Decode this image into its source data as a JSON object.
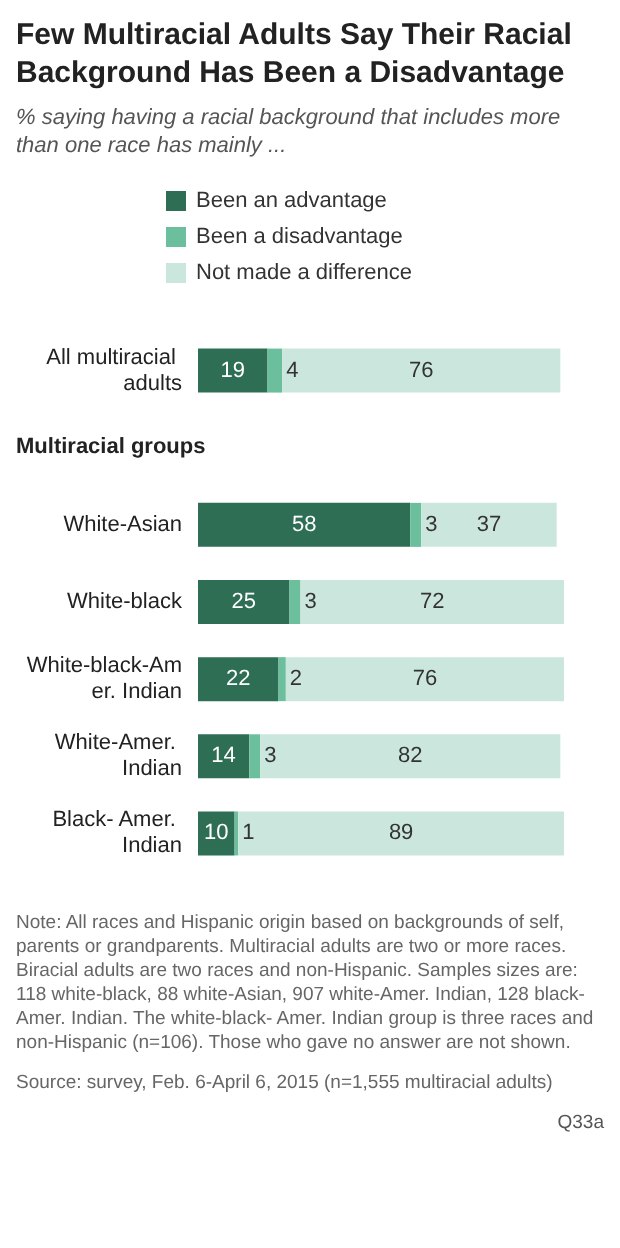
{
  "chart_data": {
    "type": "bar",
    "orientation": "horizontal",
    "stacked": true,
    "data_labels": true,
    "legend": "top left",
    "tick_labels": "y",
    "title": "Few Multiracial Adults Say Their Racial Background Has Been a Disadvantage",
    "subtitle": "% saying having a racial background that includes more than one race has mainly ...",
    "categories": [
      "All multiracial adults",
      null,
      "White-Asian",
      "White-black",
      "White-black-Amer. Indian",
      "White-Amer. Indian",
      "Black- Amer. Indian"
    ],
    "series": [
      {
        "name": "Been an advantage",
        "color": "#2d6e55",
        "values": [
          19,
          null,
          58,
          25,
          22,
          14,
          10
        ]
      },
      {
        "name": "Been a disadvantage",
        "color": "#6cbf9c",
        "values": [
          4,
          null,
          3,
          3,
          2,
          3,
          1
        ]
      },
      {
        "name": "Not made a difference",
        "color": "#cbe7dd",
        "values": [
          76,
          null,
          37,
          72,
          76,
          82,
          89
        ]
      }
    ],
    "annotations": [
      "Multiracial groups",
      "Note: All races and Hispanic origin based on backgrounds of self, parents or grandparents. Multiracial adults are two or more races. Biracial adults are two races and non-Hispanic. Samples sizes are: 118 white-black, 88 white-Asian, 907 white-Amer. Indian, 128 black-Amer. Indian. The white-black- Amer. Indian group is three races and non-Hispanic (n=106). Those who gave no answer are not shown.",
      "Source: survey, Feb. 6-April 6, 2015 (n=1,555 multiracial adults)",
      "Q33a"
    ]
  }
}
